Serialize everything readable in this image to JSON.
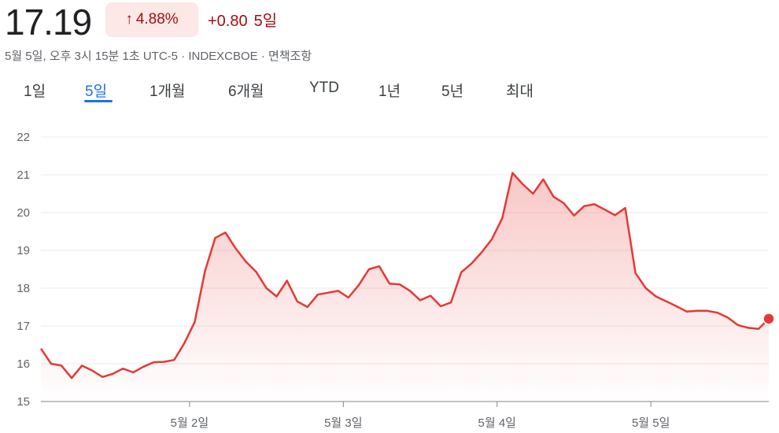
{
  "quote": {
    "price": "17.19",
    "change_pct": "4.88%",
    "change_abs": "+0.80",
    "change_period": "5일",
    "arrow_icon": "arrow-up-icon",
    "meta": "5월 5일, 오후 3시 15분 1초 UTC-5 · INDEXCBOE · 면책조항",
    "down_color": "#a50e0e"
  },
  "tabs": [
    {
      "label": "1일",
      "active": false
    },
    {
      "label": "5일",
      "active": true
    },
    {
      "label": "1개월",
      "active": false
    },
    {
      "label": "6개월",
      "active": false
    },
    {
      "label": "YTD",
      "active": false
    },
    {
      "label": "1년",
      "active": false
    },
    {
      "label": "5년",
      "active": false
    },
    {
      "label": "최대",
      "active": false
    }
  ],
  "chart_data": {
    "type": "area",
    "title": "",
    "xlabel": "",
    "ylabel": "",
    "ylim": [
      15,
      22
    ],
    "yticks": [
      15,
      16,
      17,
      18,
      19,
      20,
      21,
      22
    ],
    "grid": true,
    "line_color": "#e53935",
    "x_tick_labels": [
      "5월 2일",
      "5월 3일",
      "5월 4일",
      "5월 5일"
    ],
    "x_tick_index": [
      14.5,
      29.5,
      44.5,
      59.5
    ],
    "series": [
      {
        "values": [
          16.4,
          16.0,
          15.95,
          15.62,
          15.95,
          15.82,
          15.65,
          15.73,
          15.87,
          15.77,
          15.92,
          16.04,
          16.05,
          16.1,
          16.55,
          17.1,
          18.45,
          19.33,
          19.47,
          19.05,
          18.7,
          18.43,
          18.0,
          17.78,
          18.2,
          17.65,
          17.5,
          17.83,
          17.88,
          17.93,
          17.75,
          18.08,
          18.5,
          18.58,
          18.12,
          18.1,
          17.93,
          17.68,
          17.8,
          17.52,
          17.62,
          18.42,
          18.65,
          18.95,
          19.3,
          19.85,
          21.05,
          20.75,
          20.5,
          20.88,
          20.42,
          20.25,
          19.92,
          20.17,
          20.22,
          20.08,
          19.93,
          20.12,
          18.4,
          18.0,
          17.78,
          17.65,
          17.52,
          17.38,
          17.4,
          17.4,
          17.35,
          17.22,
          17.02,
          16.95,
          16.92,
          17.19
        ]
      }
    ]
  }
}
